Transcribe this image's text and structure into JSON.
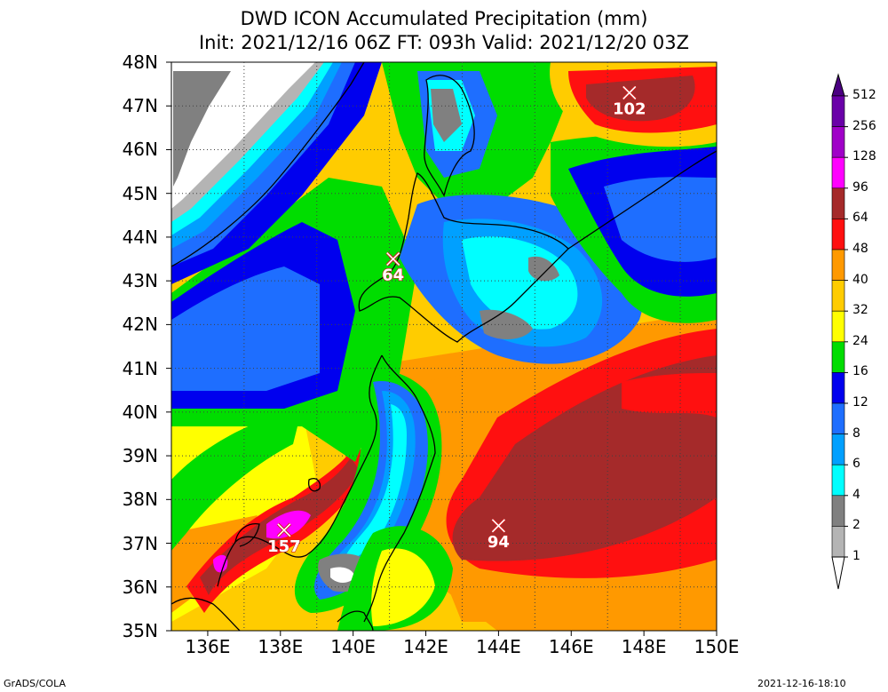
{
  "title": {
    "line1": "DWD ICON Accumulated Precipitation (mm)",
    "line2": "Init: 2021/12/16 06Z  FT: 093h  Valid: 2021/12/20 03Z"
  },
  "axes": {
    "lat_labels": [
      "48N",
      "47N",
      "46N",
      "45N",
      "44N",
      "43N",
      "42N",
      "41N",
      "40N",
      "39N",
      "38N",
      "37N",
      "36N",
      "35N"
    ],
    "lon_labels": [
      "136E",
      "138E",
      "140E",
      "142E",
      "144E",
      "146E",
      "148E",
      "150E"
    ],
    "lat_range": [
      35,
      48
    ],
    "lon_range": [
      135,
      150
    ]
  },
  "maxima": [
    {
      "label": "102",
      "lon": 147.6,
      "lat": 47.3
    },
    {
      "label": "64",
      "lon": 141.1,
      "lat": 43.5
    },
    {
      "label": "94",
      "lon": 144.0,
      "lat": 37.4
    },
    {
      "label": "157",
      "lon": 138.1,
      "lat": 37.3
    }
  ],
  "legend": {
    "levels": [
      "512",
      "256",
      "128",
      "96",
      "64",
      "48",
      "40",
      "32",
      "24",
      "16",
      "12",
      "8",
      "6",
      "4",
      "2",
      "1"
    ],
    "colors": [
      "#6a00a8",
      "#a000c8",
      "#ff00ff",
      "#a52a2a",
      "#ff1010",
      "#ff9900",
      "#ffcc00",
      "#ffff00",
      "#00dd00",
      "#0000ee",
      "#1e6eff",
      "#00a0ff",
      "#00ffff",
      "#808080",
      "#b4b4b4",
      "#ffffff"
    ],
    "colors_note": "top-to-bottom bands; topmost triangle #4b0082, bottom triangle white"
  },
  "credits": {
    "left": "GrADS/COLA",
    "right": "2021-12-16-18:10"
  },
  "palette": {
    "dkgray": "#808080",
    "ltgray": "#b4b4b4",
    "cyan": "#00ffff",
    "ltblue": "#00a0ff",
    "midblue": "#1e6eff",
    "blue": "#0000ee",
    "green": "#00dd00",
    "yellow": "#ffff00",
    "gold": "#ffcc00",
    "orange": "#ff9900",
    "red": "#ff1010",
    "brown": "#a52a2a",
    "magenta": "#ff00ff",
    "white": "#ffffff"
  }
}
